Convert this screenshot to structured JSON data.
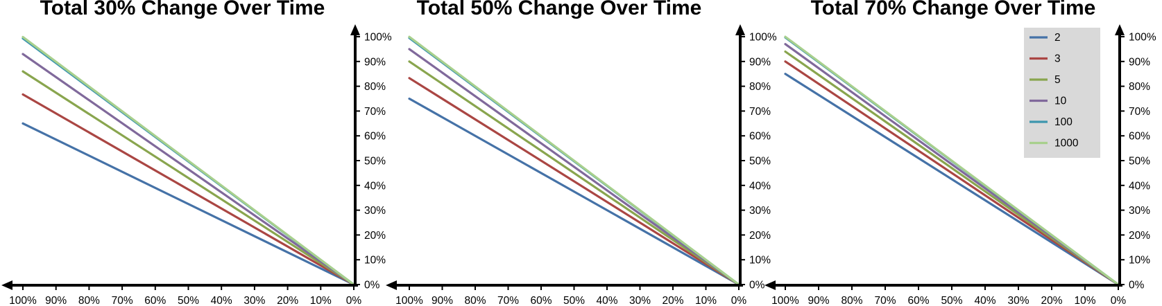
{
  "chart_data": [
    {
      "type": "line",
      "title": "Total 30% Change Over Time",
      "xlabel": "",
      "ylabel": "",
      "x_ticks": [
        "100%",
        "90%",
        "80%",
        "70%",
        "60%",
        "50%",
        "40%",
        "30%",
        "20%",
        "10%",
        "0%"
      ],
      "y_ticks": [
        "0%",
        "10%",
        "20%",
        "30%",
        "40%",
        "50%",
        "60%",
        "70%",
        "80%",
        "90%",
        "100%"
      ],
      "xlim": [
        100,
        0
      ],
      "ylim": [
        0,
        100
      ],
      "grid": false,
      "series": [
        {
          "name": "2",
          "x": [
            100,
            0
          ],
          "y": [
            65,
            0
          ]
        },
        {
          "name": "3",
          "x": [
            100,
            0
          ],
          "y": [
            76.7,
            0
          ]
        },
        {
          "name": "5",
          "x": [
            100,
            0
          ],
          "y": [
            86,
            0
          ]
        },
        {
          "name": "10",
          "x": [
            100,
            0
          ],
          "y": [
            93,
            0
          ]
        },
        {
          "name": "100",
          "x": [
            100,
            0
          ],
          "y": [
            99.3,
            0
          ]
        },
        {
          "name": "1000",
          "x": [
            100,
            0
          ],
          "y": [
            99.9,
            0
          ]
        }
      ]
    },
    {
      "type": "line",
      "title": "Total 50% Change Over Time",
      "xlabel": "",
      "ylabel": "",
      "x_ticks": [
        "100%",
        "90%",
        "80%",
        "70%",
        "60%",
        "50%",
        "40%",
        "30%",
        "20%",
        "10%",
        "0%"
      ],
      "y_ticks": [
        "0%",
        "10%",
        "20%",
        "30%",
        "40%",
        "50%",
        "60%",
        "70%",
        "80%",
        "90%",
        "100%"
      ],
      "xlim": [
        100,
        0
      ],
      "ylim": [
        0,
        100
      ],
      "grid": false,
      "series": [
        {
          "name": "2",
          "x": [
            100,
            0
          ],
          "y": [
            75,
            0
          ]
        },
        {
          "name": "3",
          "x": [
            100,
            0
          ],
          "y": [
            83.3,
            0
          ]
        },
        {
          "name": "5",
          "x": [
            100,
            0
          ],
          "y": [
            90,
            0
          ]
        },
        {
          "name": "10",
          "x": [
            100,
            0
          ],
          "y": [
            95,
            0
          ]
        },
        {
          "name": "100",
          "x": [
            100,
            0
          ],
          "y": [
            99.5,
            0
          ]
        },
        {
          "name": "1000",
          "x": [
            100,
            0
          ],
          "y": [
            99.95,
            0
          ]
        }
      ]
    },
    {
      "type": "line",
      "title": "Total 70% Change Over Time",
      "xlabel": "",
      "ylabel": "",
      "x_ticks": [
        "100%",
        "90%",
        "80%",
        "70%",
        "60%",
        "50%",
        "40%",
        "30%",
        "20%",
        "10%",
        "0%"
      ],
      "y_ticks": [
        "0%",
        "10%",
        "20%",
        "30%",
        "40%",
        "50%",
        "60%",
        "70%",
        "80%",
        "90%",
        "100%"
      ],
      "xlim": [
        100,
        0
      ],
      "ylim": [
        0,
        100
      ],
      "grid": false,
      "legend": "top-right",
      "series": [
        {
          "name": "2",
          "x": [
            100,
            0
          ],
          "y": [
            85,
            0
          ]
        },
        {
          "name": "3",
          "x": [
            100,
            0
          ],
          "y": [
            90,
            0
          ]
        },
        {
          "name": "5",
          "x": [
            100,
            0
          ],
          "y": [
            94,
            0
          ]
        },
        {
          "name": "10",
          "x": [
            100,
            0
          ],
          "y": [
            97,
            0
          ]
        },
        {
          "name": "100",
          "x": [
            100,
            0
          ],
          "y": [
            99.7,
            0
          ]
        },
        {
          "name": "1000",
          "x": [
            100,
            0
          ],
          "y": [
            99.97,
            0
          ]
        }
      ]
    }
  ],
  "series_colors": [
    "#4572A7",
    "#AA4643",
    "#89A54E",
    "#80699B",
    "#3D96AE",
    "#A8D08D"
  ],
  "legend_background": "#D9D9D9"
}
